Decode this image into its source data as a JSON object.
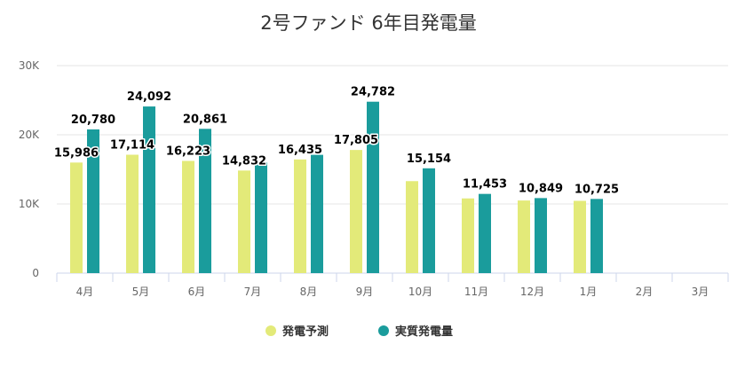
{
  "chart_data": {
    "type": "bar",
    "title": "2号ファンド 6年目発電量",
    "categories": [
      "4月",
      "5月",
      "6月",
      "7月",
      "8月",
      "9月",
      "10月",
      "11月",
      "12月",
      "1月",
      "2月",
      "3月"
    ],
    "ylim": [
      0,
      30000
    ],
    "yticks": [
      0,
      10000,
      20000,
      30000
    ],
    "ytick_labels": [
      "0",
      "10K",
      "20K",
      "30K"
    ],
    "grid": true,
    "legend_position": "bottom-center",
    "series": [
      {
        "name": "発電予測",
        "color": "#e3ea79",
        "values": [
          15986,
          17114,
          16223,
          14832,
          16435,
          17805,
          13300,
          10800,
          10500,
          10450,
          null,
          null
        ],
        "labels": [
          "15,986",
          "17,114",
          "16,223",
          "14,832",
          "16,435",
          "17,805",
          "",
          "",
          "",
          "",
          "",
          ""
        ]
      },
      {
        "name": "実質発電量",
        "color": "#1a9c9c",
        "values": [
          20780,
          24092,
          20861,
          16000,
          17100,
          24782,
          15154,
          11453,
          10849,
          10725,
          null,
          null
        ],
        "labels": [
          "20,780",
          "24,092",
          "20,861",
          "",
          "",
          "24,782",
          "15,154",
          "11,453",
          "10,849",
          "10,725",
          "",
          ""
        ]
      }
    ]
  }
}
